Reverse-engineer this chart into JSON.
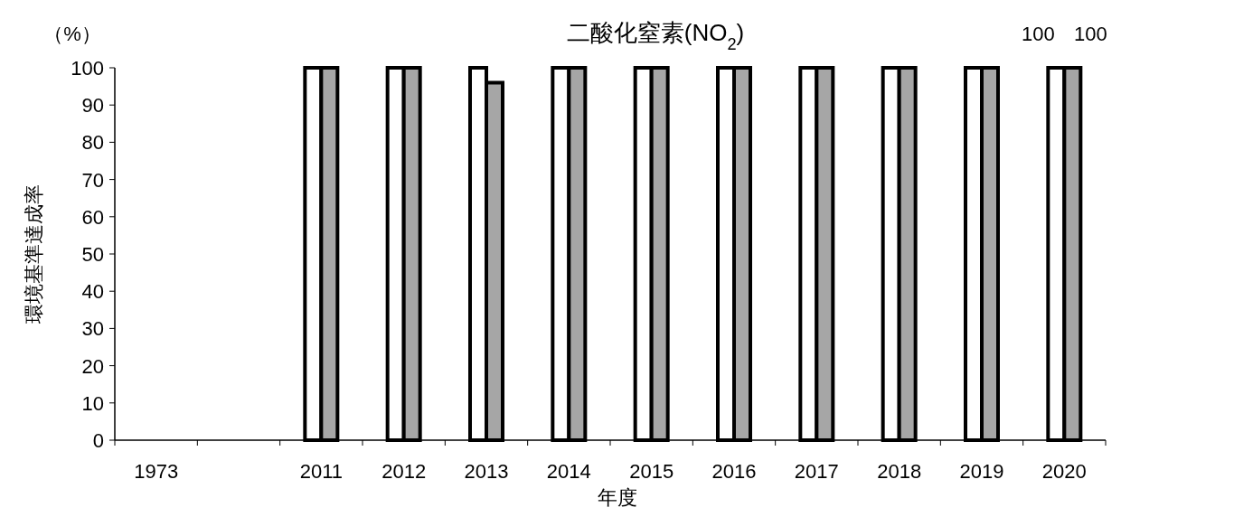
{
  "chart_data": {
    "type": "bar",
    "title": "二酸化窒素(NO$_{2}$)",
    "xlabel": "年度",
    "ylabel": "環境基準達成率",
    "annotations": [
      "（%）"
    ],
    "categories": [
      "1973",
      null,
      "2011",
      "2012",
      "2013",
      "2014",
      "2015",
      "2016",
      "2017",
      "2018",
      "2019",
      "2020"
    ],
    "series": [
      {
        "color": "#ffffff",
        "values": [
          null,
          null,
          100,
          100,
          100,
          100,
          100,
          100,
          100,
          100,
          100,
          100
        ],
        "value_labels": [
          null,
          null,
          null,
          null,
          null,
          null,
          null,
          null,
          null,
          null,
          null,
          "100"
        ]
      },
      {
        "color": "#a6a6a6",
        "values": [
          null,
          null,
          100,
          100,
          96,
          100,
          100,
          100,
          100,
          100,
          100,
          100
        ],
        "value_labels": [
          null,
          null,
          null,
          null,
          null,
          null,
          null,
          null,
          null,
          null,
          null,
          "100"
        ]
      }
    ],
    "ylim": [
      0,
      100
    ],
    "yticks": [
      0,
      10,
      20,
      30,
      40,
      50,
      60,
      70,
      80,
      90,
      100
    ],
    "grid": false
  }
}
